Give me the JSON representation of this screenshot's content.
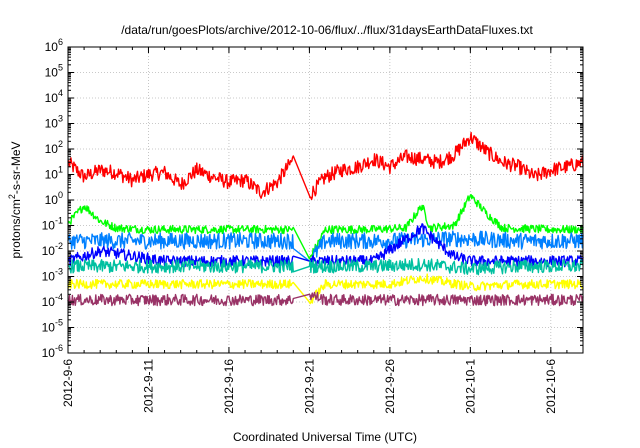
{
  "chart_data": {
    "type": "line",
    "title": "/data/run/goesPlots/archive/2012-10-06/flux/../flux/31daysEarthDataFluxes.txt",
    "xlabel": "Coordinated Universal Time (UTC)",
    "ylabel": "protons/cm2-s-sr-MeV",
    "ylabel_parts": {
      "main": "protons/cm",
      "sup": "2",
      "rest": "-s-sr-MeV"
    },
    "yscale": "log",
    "ylim": [
      1e-06,
      1000000.0
    ],
    "xlim": [
      "2012-09-06",
      "2012-10-08"
    ],
    "x_tick_labels": [
      "2012-9-6",
      "2012-9-11",
      "2012-9-16",
      "2012-9-21",
      "2012-9-26",
      "2012-10-1",
      "2012-10-6"
    ],
    "x_tick_dates": [
      "2012-09-06",
      "2012-09-11",
      "2012-09-16",
      "2012-09-21",
      "2012-09-26",
      "2012-10-01",
      "2012-10-06"
    ],
    "y_tick_exponents": [
      -6,
      -5,
      -4,
      -3,
      -2,
      -1,
      0,
      1,
      2,
      3,
      4,
      5,
      6
    ],
    "grid": true,
    "data_gap": [
      "2012-09-20",
      "2012-09-21"
    ],
    "series": [
      {
        "color": "#ff0000",
        "points": [
          [
            "2012-09-06",
            30
          ],
          [
            "2012-09-07",
            8
          ],
          [
            "2012-09-08",
            15
          ],
          [
            "2012-09-09",
            12
          ],
          [
            "2012-09-10",
            6
          ],
          [
            "2012-09-11",
            10
          ],
          [
            "2012-09-12",
            12
          ],
          [
            "2012-09-13",
            4
          ],
          [
            "2012-09-14",
            15
          ],
          [
            "2012-09-15",
            8
          ],
          [
            "2012-09-16",
            5
          ],
          [
            "2012-09-17",
            6
          ],
          [
            "2012-09-18",
            2
          ],
          [
            "2012-09-19",
            5
          ],
          [
            "2012-09-20",
            40
          ],
          [
            "2012-09-21",
            1.5
          ],
          [
            "2012-09-22",
            8
          ],
          [
            "2012-09-23",
            15
          ],
          [
            "2012-09-24",
            20
          ],
          [
            "2012-09-25",
            40
          ],
          [
            "2012-09-26",
            20
          ],
          [
            "2012-09-27",
            50
          ],
          [
            "2012-09-28",
            40
          ],
          [
            "2012-09-29",
            30
          ],
          [
            "2012-09-30",
            60
          ],
          [
            "2012-10-01",
            300
          ],
          [
            "2012-10-02",
            80
          ],
          [
            "2012-10-03",
            30
          ],
          [
            "2012-10-04",
            20
          ],
          [
            "2012-10-05",
            8
          ],
          [
            "2012-10-06",
            15
          ],
          [
            "2012-10-07",
            20
          ],
          [
            "2012-10-08",
            30
          ]
        ]
      },
      {
        "color": "#00ff00",
        "points": [
          [
            "2012-09-06",
            0.12
          ],
          [
            "2012-09-07",
            0.6
          ],
          [
            "2012-09-08",
            0.15
          ],
          [
            "2012-09-09",
            0.08
          ],
          [
            "2012-09-11",
            0.07
          ],
          [
            "2012-09-14",
            0.07
          ],
          [
            "2012-09-17",
            0.07
          ],
          [
            "2012-09-20",
            0.07
          ],
          [
            "2012-09-21",
            0.005
          ],
          [
            "2012-09-22",
            0.07
          ],
          [
            "2012-09-25",
            0.07
          ],
          [
            "2012-09-27",
            0.08
          ],
          [
            "2012-09-28",
            0.6
          ],
          [
            "2012-09-28.5",
            0.08
          ],
          [
            "2012-09-30",
            0.1
          ],
          [
            "2012-10-01",
            1.5
          ],
          [
            "2012-10-02",
            0.3
          ],
          [
            "2012-10-03",
            0.08
          ],
          [
            "2012-10-06",
            0.07
          ],
          [
            "2012-10-08",
            0.07
          ]
        ]
      },
      {
        "color": "#0080ff",
        "points": [
          [
            "2012-09-06",
            0.025
          ],
          [
            "2012-09-10",
            0.025
          ],
          [
            "2012-09-15",
            0.025
          ],
          [
            "2012-09-20",
            0.025
          ],
          [
            "2012-09-21",
            0.004
          ],
          [
            "2012-09-22",
            0.025
          ],
          [
            "2012-09-26",
            0.025
          ],
          [
            "2012-09-29",
            0.03
          ],
          [
            "2012-10-01",
            0.03
          ],
          [
            "2012-10-04",
            0.025
          ],
          [
            "2012-10-08",
            0.025
          ]
        ]
      },
      {
        "color": "#0000ff",
        "points": [
          [
            "2012-09-06",
            0.004
          ],
          [
            "2012-09-08",
            0.01
          ],
          [
            "2012-09-09",
            0.008
          ],
          [
            "2012-09-12",
            0.004
          ],
          [
            "2012-09-16",
            0.004
          ],
          [
            "2012-09-20",
            0.004
          ],
          [
            "2012-09-21",
            0.004
          ],
          [
            "2012-09-25",
            0.004
          ],
          [
            "2012-09-28",
            0.08
          ],
          [
            "2012-09-29",
            0.02
          ],
          [
            "2012-09-30",
            0.006
          ],
          [
            "2012-10-01",
            0.004
          ],
          [
            "2012-10-04",
            0.004
          ],
          [
            "2012-10-08",
            0.004
          ]
        ]
      },
      {
        "color": "#00c0a0",
        "points": [
          [
            "2012-09-06",
            0.0025
          ],
          [
            "2012-09-10",
            0.0025
          ],
          [
            "2012-09-15",
            0.0025
          ],
          [
            "2012-09-20",
            0.0025
          ],
          [
            "2012-09-21",
            0.0025
          ],
          [
            "2012-09-25",
            0.0025
          ],
          [
            "2012-09-28",
            0.003
          ],
          [
            "2012-10-01",
            0.002
          ],
          [
            "2012-10-04",
            0.0025
          ],
          [
            "2012-10-08",
            0.0025
          ]
        ]
      },
      {
        "color": "#ffff00",
        "points": [
          [
            "2012-09-06",
            0.0005
          ],
          [
            "2012-09-10",
            0.0005
          ],
          [
            "2012-09-15",
            0.0005
          ],
          [
            "2012-09-20",
            0.0005
          ],
          [
            "2012-09-21",
            0.0001
          ],
          [
            "2012-09-22",
            0.0005
          ],
          [
            "2012-09-26",
            0.0005
          ],
          [
            "2012-09-28",
            0.0009
          ],
          [
            "2012-10-01",
            0.0004
          ],
          [
            "2012-10-04",
            0.0005
          ],
          [
            "2012-10-08",
            0.0005
          ]
        ]
      },
      {
        "color": "#993366",
        "points": [
          [
            "2012-09-06",
            0.00012
          ],
          [
            "2012-09-10",
            0.00012
          ],
          [
            "2012-09-15",
            0.00012
          ],
          [
            "2012-09-20",
            0.00012
          ],
          [
            "2012-09-21",
            0.0002
          ],
          [
            "2012-09-22",
            0.00012
          ],
          [
            "2012-09-26",
            0.00012
          ],
          [
            "2012-10-01",
            0.00012
          ],
          [
            "2012-10-04",
            0.00012
          ],
          [
            "2012-10-08",
            0.00012
          ]
        ]
      }
    ]
  }
}
